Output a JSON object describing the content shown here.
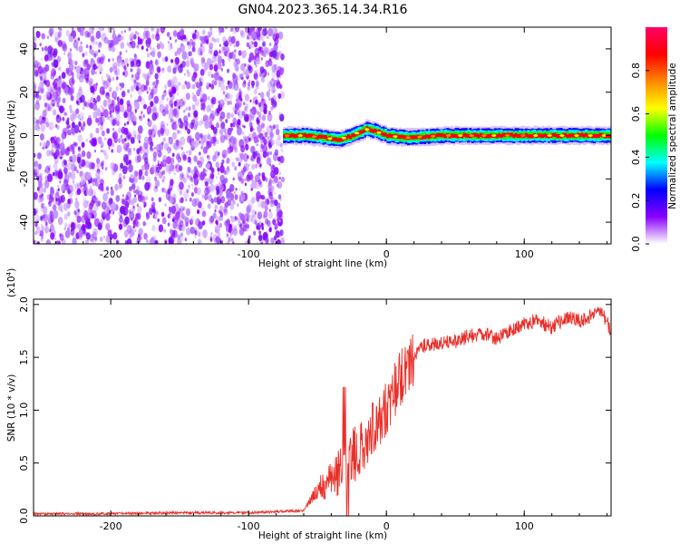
{
  "title": "GN04.2023.365.14.34.R16",
  "chart_data": [
    {
      "type": "heatmap",
      "xlabel": "Height of straight line (km)",
      "ylabel": "Frequency (Hz)",
      "xlim": [
        -256,
        163
      ],
      "ylim": [
        -50,
        50
      ],
      "xticks": [
        "-200",
        "-100",
        "0",
        "100"
      ],
      "yticks": [
        "-40",
        "-20",
        "0",
        "20",
        "40"
      ],
      "noise_region_x": [
        -256,
        -75
      ],
      "signal_band": {
        "x_start": -75,
        "x_end": 163,
        "center_freq": [
          [
            -75,
            0
          ],
          [
            -60,
            0
          ],
          [
            -45,
            -1
          ],
          [
            -35,
            -2
          ],
          [
            -25,
            0
          ],
          [
            -15,
            3
          ],
          [
            -8,
            2
          ],
          [
            0,
            0
          ],
          [
            15,
            -1
          ],
          [
            40,
            0
          ],
          [
            80,
            0
          ],
          [
            110,
            0
          ],
          [
            163,
            0
          ]
        ]
      },
      "colorbar": {
        "label": "Normalized spectral amplitude",
        "range": [
          0,
          1
        ],
        "ticks": [
          "0.0",
          "0.2",
          "0.4",
          "0.6",
          "0.8"
        ],
        "colors": [
          "#ffffff",
          "#8a00ff",
          "#0000ff",
          "#00ffff",
          "#00ff00",
          "#ffff00",
          "#ff8800",
          "#ff0000",
          "#ff0066"
        ]
      }
    },
    {
      "type": "line",
      "xlabel": "Height of straight line (km)",
      "ylabel": "SNR (10 * v/v)",
      "scale_label": "(x10",
      "scale_exp": "4",
      "scale_close": ")",
      "xlim": [
        -256,
        163
      ],
      "ylim": [
        0,
        2.05
      ],
      "xticks": [
        "-200",
        "-100",
        "0",
        "100"
      ],
      "yticks": [
        "0.0",
        "0.5",
        "1.0",
        "1.5",
        "2.0"
      ],
      "color": "#e8302a",
      "series": [
        {
          "x": [
            -256,
            -200,
            -150,
            -100,
            -60,
            -55,
            -50,
            -45,
            -40,
            -35,
            -30,
            -25,
            -20,
            -15,
            -10,
            -5,
            0,
            5,
            10,
            15,
            20,
            25,
            30,
            40,
            50,
            60,
            70,
            80,
            90,
            100,
            110,
            120,
            130,
            140,
            150,
            155,
            163
          ],
          "y": [
            0.02,
            0.02,
            0.03,
            0.03,
            0.05,
            0.15,
            0.25,
            0.3,
            0.35,
            0.4,
            0.5,
            0.55,
            0.6,
            0.75,
            0.85,
            0.9,
            1.0,
            1.15,
            1.3,
            1.4,
            1.5,
            1.6,
            1.62,
            1.63,
            1.65,
            1.7,
            1.72,
            1.68,
            1.75,
            1.82,
            1.85,
            1.78,
            1.88,
            1.85,
            1.9,
            1.95,
            1.75
          ]
        }
      ]
    }
  ]
}
